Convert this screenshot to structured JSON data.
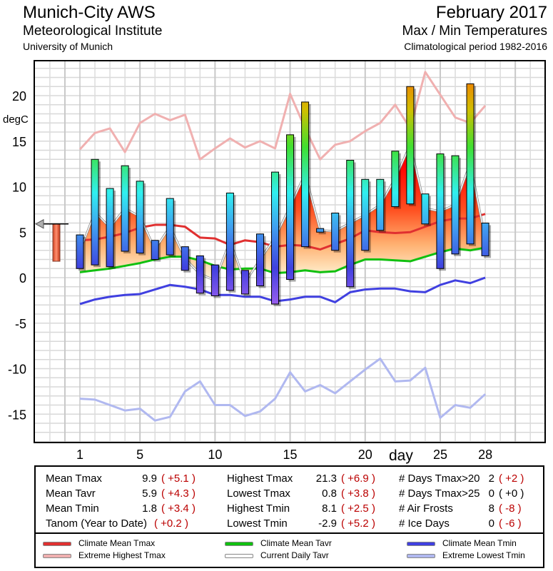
{
  "header": {
    "station": "Munich-City AWS",
    "institute": "Meteorological Institute",
    "university": "University of Munich",
    "month": "February 2017",
    "subtitle": "Max / Min Temperatures",
    "period": "Climatological period 1982-2016"
  },
  "chart_data": {
    "type": "bar",
    "title": "Max / Min Temperatures",
    "ylabel": "degC",
    "xlabel": "day",
    "ylim": [
      -18,
      24
    ],
    "xlim": [
      -2,
      32
    ],
    "yticks": [
      20,
      15,
      10,
      5,
      0,
      -5,
      -10,
      -15
    ],
    "xticks": [
      1,
      5,
      10,
      15,
      20,
      25,
      28
    ],
    "days": [
      1,
      2,
      3,
      4,
      5,
      6,
      7,
      8,
      9,
      10,
      11,
      12,
      13,
      14,
      15,
      16,
      17,
      18,
      19,
      20,
      21,
      22,
      23,
      24,
      25,
      26,
      27,
      28
    ],
    "tmax": [
      4.7,
      13.0,
      9.8,
      12.3,
      10.6,
      4.1,
      8.7,
      3.4,
      2.4,
      1.4,
      9.3,
      0.8,
      4.8,
      11.6,
      15.7,
      19.3,
      5.4,
      7.1,
      12.9,
      10.8,
      10.8,
      13.9,
      21.0,
      9.2,
      13.6,
      13.4,
      21.3,
      6.0
    ],
    "tmin": [
      1.0,
      1.4,
      1.2,
      2.9,
      2.7,
      2.0,
      2.5,
      0.8,
      -1.7,
      -2.0,
      -1.4,
      -1.8,
      -0.9,
      -2.9,
      -0.2,
      3.4,
      5.0,
      3.0,
      -1.0,
      3.0,
      5.2,
      7.8,
      8.1,
      5.9,
      1.0,
      2.6,
      3.7,
      2.4
    ],
    "series": [
      {
        "name": "Climate Mean Tmax",
        "color": "#e03030",
        "values": [
          4.1,
          4.2,
          4.5,
          4.9,
          5.5,
          5.8,
          5.8,
          5.6,
          4.4,
          4.3,
          3.6,
          4.1,
          3.9,
          3.4,
          3.6,
          3.5,
          3.1,
          3.7,
          4.3,
          5.2,
          5.0,
          4.9,
          5.0,
          5.6,
          6.2,
          6.5,
          6.5,
          7.0
        ]
      },
      {
        "name": "Extreme Highest Tmax",
        "color": "#f0b0b0",
        "values": [
          14.1,
          15.9,
          16.4,
          13.8,
          17.0,
          18.0,
          17.3,
          17.9,
          13.0,
          14.2,
          15.3,
          14.3,
          15.0,
          14.2,
          20.2,
          16.4,
          13.0,
          14.6,
          15.0,
          16.1,
          17.0,
          19.0,
          16.4,
          22.6,
          20.1,
          17.6,
          17.0,
          18.9
        ]
      },
      {
        "name": "Climate Mean Tavr",
        "color": "#10c010",
        "values": [
          0.6,
          0.8,
          1.0,
          1.3,
          1.6,
          2.0,
          2.3,
          2.3,
          1.9,
          1.3,
          0.9,
          1.0,
          1.0,
          0.5,
          0.6,
          0.8,
          0.6,
          0.7,
          1.4,
          2.0,
          2.0,
          1.9,
          1.8,
          2.3,
          2.8,
          3.2,
          3.0,
          3.3
        ]
      },
      {
        "name": "Current Daily Tavr",
        "color": "#a0a0a0",
        "values": [
          2.9,
          7.2,
          5.5,
          7.6,
          6.7,
          3.1,
          5.6,
          2.1,
          0.4,
          -0.3,
          4.0,
          -0.5,
          2.0,
          4.4,
          7.8,
          11.4,
          5.2,
          5.1,
          6.0,
          6.9,
          8.0,
          10.9,
          14.6,
          7.6,
          7.3,
          8.0,
          12.6,
          4.2
        ]
      },
      {
        "name": "Climate Mean Tmin",
        "color": "#4040e0",
        "values": [
          -2.9,
          -2.4,
          -2.1,
          -1.9,
          -1.8,
          -1.3,
          -0.8,
          -1.0,
          -1.3,
          -1.9,
          -1.9,
          -2.1,
          -2.1,
          -2.6,
          -2.4,
          -2.1,
          -2.1,
          -2.7,
          -1.6,
          -1.3,
          -1.2,
          -1.2,
          -1.5,
          -1.6,
          -0.8,
          -0.3,
          -0.6,
          0.0
        ]
      },
      {
        "name": "Extreme Lowest Tmin",
        "color": "#b0b8f0",
        "values": [
          -13.3,
          -13.4,
          -14.0,
          -14.6,
          -14.4,
          -15.7,
          -15.3,
          -12.5,
          -11.4,
          -14.0,
          -14.0,
          -15.2,
          -14.7,
          -13.3,
          -10.4,
          -12.5,
          -11.8,
          -12.7,
          -11.4,
          -10.1,
          -8.9,
          -11.4,
          -11.3,
          -9.9,
          -15.4,
          -14.0,
          -14.3,
          -12.8
        ]
      }
    ],
    "monthly_marker": {
      "mean_tavr": 5.9,
      "mean_tmin": 1.8
    }
  },
  "stats": {
    "col1": [
      {
        "label": "Mean Tmax",
        "value": "9.9",
        "anom": "( +5.1 )"
      },
      {
        "label": "Mean Tavr",
        "value": "5.9",
        "anom": "( +4.3 )"
      },
      {
        "label": "Mean Tmin",
        "value": "1.8",
        "anom": "( +3.4 )"
      },
      {
        "label": "Tanom (Year to Date)",
        "value": "",
        "anom": "( +0.2 )"
      }
    ],
    "col2": [
      {
        "label": "Highest Tmax",
        "value": "21.3",
        "anom": "( +6.9 )"
      },
      {
        "label": "Lowest Tmax",
        "value": "0.8",
        "anom": "( +3.8 )"
      },
      {
        "label": "Highest Tmin",
        "value": "8.1",
        "anom": "( +2.5 )"
      },
      {
        "label": "Lowest Tmin",
        "value": "-2.9",
        "anom": "( +5.2 )"
      }
    ],
    "col3": [
      {
        "label": "# Days Tmax>20",
        "value": "2",
        "anom": "( +2 )"
      },
      {
        "label": "# Days Tmax>25",
        "value": "0",
        "anom": "( +0 )"
      },
      {
        "label": "# Air Frosts",
        "value": "8",
        "anom": "( -8 )"
      },
      {
        "label": "# Ice Days",
        "value": "0",
        "anom": "( -6 )"
      }
    ]
  },
  "legend": [
    {
      "label": "Climate Mean Tmax",
      "color": "#e03030"
    },
    {
      "label": "Climate Mean Tavr",
      "color": "#10c010"
    },
    {
      "label": "Climate Mean Tmin",
      "color": "#4040e0"
    },
    {
      "label": "Extreme Highest Tmax",
      "color": "#f0b0b0"
    },
    {
      "label": "Current Daily Tavr",
      "color": "#ffffff"
    },
    {
      "label": "Extreme Lowest Tmin",
      "color": "#b0b8f0"
    }
  ]
}
